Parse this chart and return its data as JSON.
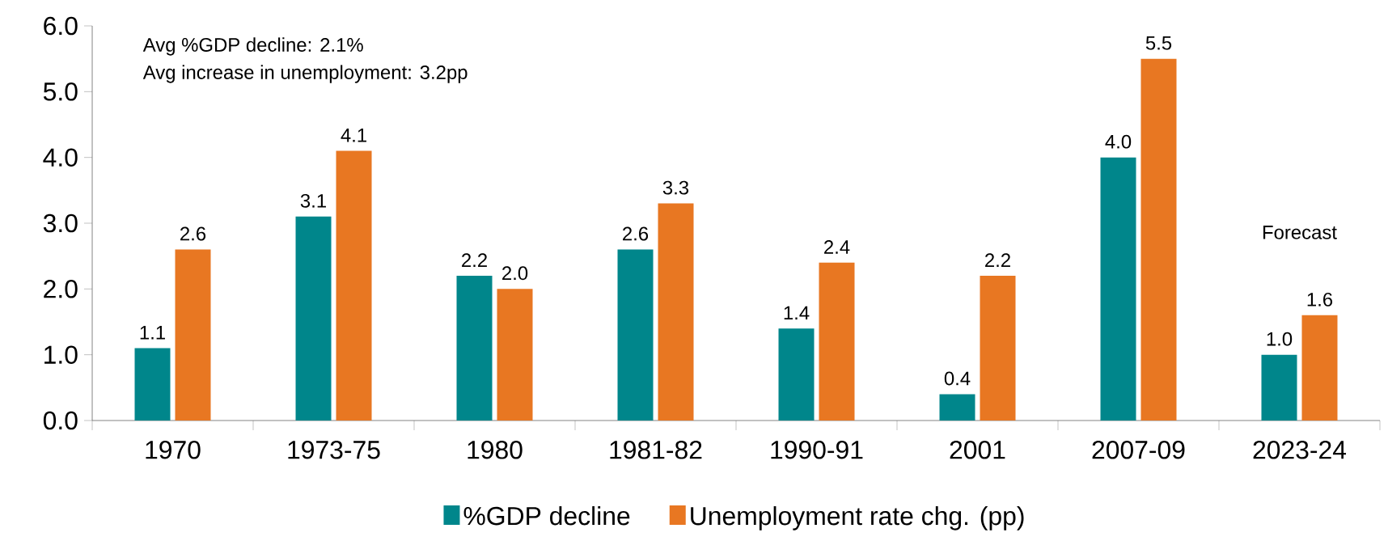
{
  "chart_data": {
    "type": "bar",
    "categories": [
      "1970",
      "1973-75",
      "1980",
      "1981-82",
      "1990-91",
      "2001",
      "2007-09",
      "2023-24"
    ],
    "series": [
      {
        "name": "%GDP decline",
        "color": "#00868b",
        "values": [
          1.1,
          3.1,
          2.2,
          2.6,
          1.4,
          0.4,
          4.0,
          1.0
        ],
        "value_labels": [
          "1.1",
          "3.1",
          "2.2",
          "2.6",
          "1.4",
          "0.4",
          "4.0",
          "1.0"
        ]
      },
      {
        "name": "Unemployment rate chg. (pp)",
        "color": "#e87722",
        "values": [
          2.6,
          4.1,
          2.0,
          3.3,
          2.4,
          2.2,
          5.5,
          1.6
        ],
        "value_labels": [
          "2.6",
          "4.1",
          "2.0",
          "3.3",
          "2.4",
          "2.2",
          "5.5",
          "1.6"
        ]
      }
    ],
    "ylim": [
      0,
      6
    ],
    "yticks": [
      {
        "value": 0,
        "label": "0.0"
      },
      {
        "value": 1,
        "label": "1.0"
      },
      {
        "value": 2,
        "label": "2.0"
      },
      {
        "value": 3,
        "label": "3.0"
      },
      {
        "value": 4,
        "label": "4.0"
      },
      {
        "value": 5,
        "label": "5.0"
      },
      {
        "value": 6,
        "label": "6.0"
      }
    ],
    "legend": "bottom",
    "annotations": [
      "Avg %GDP decline: 2.1%",
      "Avg increase in unemployment: 3.2pp",
      "Forecast"
    ]
  }
}
